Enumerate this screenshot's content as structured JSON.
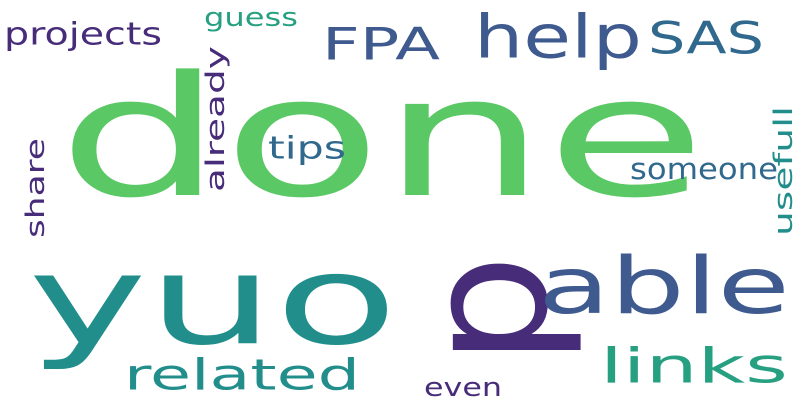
{
  "colors": {
    "background": "#ffffff",
    "green": "#5ac864",
    "teal": "#218e8c",
    "sea": "#27a082",
    "indigo": "#3e5a8e",
    "violet": "#472c7a",
    "mid_teal": "#31698e"
  },
  "words": [
    {
      "key": "done",
      "text": "done",
      "color": "#5ac864",
      "orientation": "horizontal"
    },
    {
      "key": "yuo",
      "text": "yuo",
      "color": "#218e8c",
      "orientation": "horizontal"
    },
    {
      "key": "p",
      "text": "p",
      "color": "#472c7a",
      "orientation": "vertical"
    },
    {
      "key": "able",
      "text": "able",
      "color": "#3e5a8e",
      "orientation": "horizontal"
    },
    {
      "key": "help",
      "text": "help",
      "color": "#3e5a8e",
      "orientation": "horizontal"
    },
    {
      "key": "fpa",
      "text": "FPA",
      "color": "#3e5a8e",
      "orientation": "horizontal"
    },
    {
      "key": "sas",
      "text": "SAS",
      "color": "#31698e",
      "orientation": "horizontal"
    },
    {
      "key": "links",
      "text": "links",
      "color": "#27a082",
      "orientation": "horizontal"
    },
    {
      "key": "related",
      "text": "related",
      "color": "#218e8c",
      "orientation": "horizontal"
    },
    {
      "key": "projects",
      "text": "projects",
      "color": "#472c7a",
      "orientation": "horizontal"
    },
    {
      "key": "guess",
      "text": "guess",
      "color": "#27a082",
      "orientation": "horizontal"
    },
    {
      "key": "already",
      "text": "already",
      "color": "#472c7a",
      "orientation": "vertical"
    },
    {
      "key": "tips",
      "text": "tips",
      "color": "#31698e",
      "orientation": "horizontal"
    },
    {
      "key": "share",
      "text": "share",
      "color": "#472c7a",
      "orientation": "vertical"
    },
    {
      "key": "someone",
      "text": "someone",
      "color": "#31698e",
      "orientation": "horizontal"
    },
    {
      "key": "usefull",
      "text": "usefull",
      "color": "#218e8c",
      "orientation": "vertical"
    },
    {
      "key": "even",
      "text": "even",
      "color": "#472c7a",
      "orientation": "horizontal"
    }
  ]
}
